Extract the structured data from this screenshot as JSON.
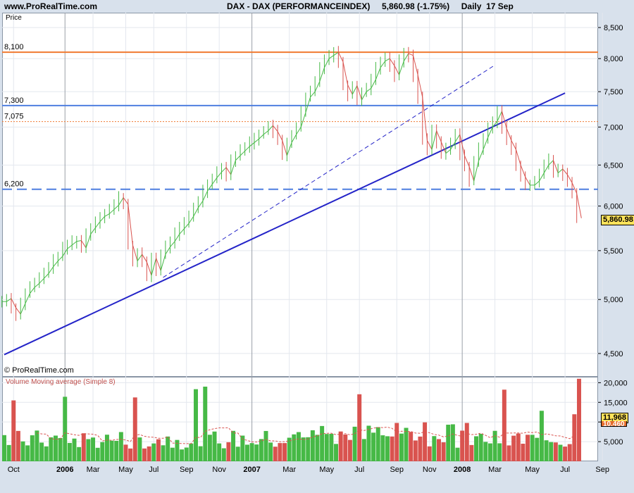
{
  "header": {
    "site": "www.ProRealTime.com",
    "title": "DAX - DAX (PERFORMANCEINDEX)     5,860.98 (-1.75%)     Daily  17 Sep"
  },
  "price_panel": {
    "axis_label": "Price",
    "copyright": "© ProRealTime.com",
    "last_price_label": "5,860.98",
    "levels": [
      {
        "label": "8,100",
        "value": 8100,
        "color": "#f07a30",
        "style": "solid"
      },
      {
        "label": "7,300",
        "value": 7300,
        "color": "#4f7fe0",
        "style": "solid"
      },
      {
        "label": "7,075",
        "value": 7075,
        "color": "#f07a30",
        "style": "dotted"
      },
      {
        "label": "6,200",
        "value": 6200,
        "color": "#4f7fe0",
        "style": "dashed"
      }
    ]
  },
  "volume_panel": {
    "label": "Volume Moving average (Simple 8)",
    "last_volume_label": "11,968",
    "hidden_label": "10,460"
  },
  "colors": {
    "up": "#46b946",
    "down": "#d9534f",
    "trendline": "#2424c8",
    "background": "#d8e1ec"
  },
  "chart_data": {
    "type": "line",
    "title": "DAX - DAX (PERFORMANCEINDEX)",
    "ylabel": "Price",
    "y_scale": "log",
    "ylim": [
      4300,
      8750
    ],
    "price_ticks": [
      "4,500",
      "5,000",
      "5,500",
      "6,000",
      "6,500",
      "7,000",
      "7,500",
      "8,000",
      "8,500"
    ],
    "price_tick_values": [
      4500,
      5000,
      5500,
      6000,
      6500,
      7000,
      7500,
      8000,
      8500
    ],
    "x_ticks": [
      "Oct",
      "2006",
      "Mar",
      "May",
      "Jul",
      "Sep",
      "Nov",
      "2007",
      "Mar",
      "May",
      "Jul",
      "Sep",
      "Nov",
      "2008",
      "Mar",
      "May",
      "Jul",
      "Sep"
    ],
    "x_tick_index": [
      2,
      13,
      19,
      26,
      32,
      39,
      46,
      53,
      61,
      69,
      76,
      84,
      91,
      98,
      105,
      113,
      120,
      128
    ],
    "weekly_close": [
      4980,
      5010,
      4920,
      4860,
      4960,
      5060,
      5120,
      5160,
      5210,
      5260,
      5330,
      5390,
      5440,
      5520,
      5560,
      5600,
      5610,
      5530,
      5680,
      5750,
      5820,
      5880,
      5910,
      5960,
      6010,
      6100,
      6020,
      5560,
      5390,
      5460,
      5380,
      5240,
      5420,
      5290,
      5460,
      5540,
      5600,
      5680,
      5740,
      5800,
      5880,
      5980,
      6060,
      6180,
      6260,
      6340,
      6410,
      6470,
      6380,
      6560,
      6620,
      6680,
      6740,
      6790,
      6840,
      6900,
      6950,
      7020,
      6940,
      6820,
      6620,
      6790,
      6900,
      7000,
      7200,
      7420,
      7500,
      7650,
      7860,
      8000,
      8050,
      8100,
      7950,
      7600,
      7460,
      7590,
      7380,
      7500,
      7550,
      7680,
      7860,
      7960,
      8000,
      7890,
      7750,
      7960,
      8080,
      8050,
      7750,
      7420,
      6820,
      6700,
      6950,
      6800,
      6650,
      6700,
      6800,
      6900,
      6620,
      6480,
      6300,
      6550,
      6700,
      6860,
      7000,
      7080,
      7220,
      6980,
      6820,
      6700,
      6500,
      6350,
      6250,
      6250,
      6300,
      6400,
      6500,
      6560,
      6400,
      6450,
      6380,
      6280,
      6150,
      5860
    ],
    "trendlines": [
      {
        "name": "",
        "style": "solid",
        "points": [
          [
            0,
            4490
          ],
          [
            120,
            7480
          ]
        ]
      },
      {
        "name": "",
        "style": "dashed",
        "points": [
          [
            34,
            5220
          ],
          [
            105,
            7900
          ]
        ]
      }
    ],
    "volume": {
      "ticks": [
        "5,000",
        "10,000",
        "15,000",
        "20,000"
      ],
      "tick_values": [
        5000,
        10000,
        15000,
        20000
      ],
      "ylim": [
        0,
        21500
      ],
      "last_value": 11968,
      "moving_average_period": 8
    }
  }
}
